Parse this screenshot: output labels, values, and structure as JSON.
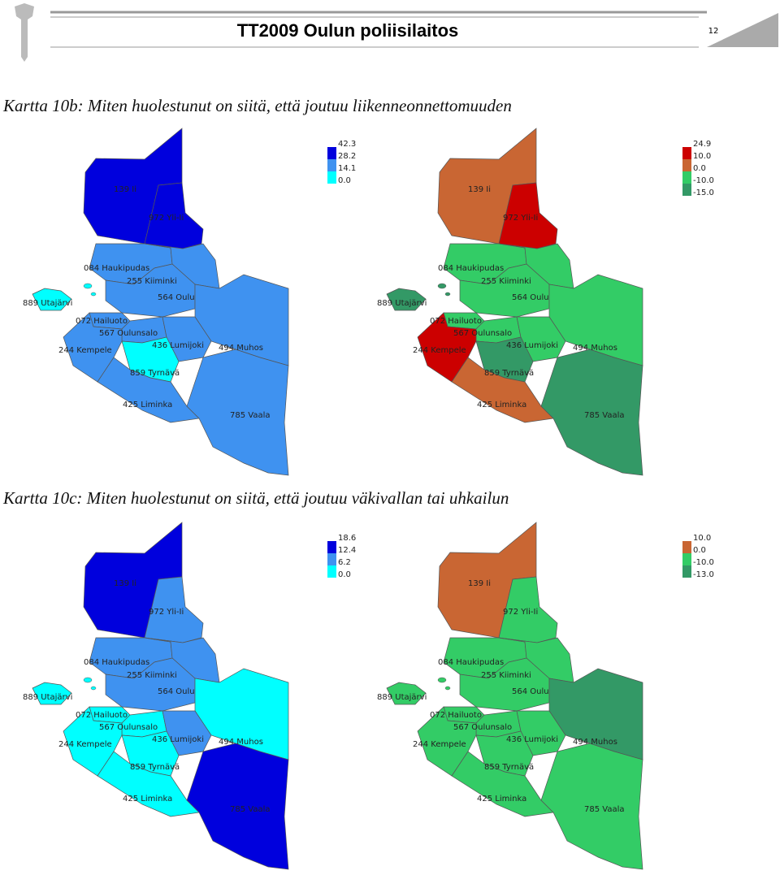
{
  "header": {
    "title": "TT2009 Oulun poliisilaitos",
    "page_number": "12"
  },
  "sections": [
    {
      "title": "Kartta 10b: Miten huolestunut on siitä, että joutuu liikenneonnettomuuden",
      "maps": [
        {
          "legend": {
            "labels": [
              "42.3",
              "28.2",
              "14.1",
              "0.0"
            ],
            "colors": [
              "#0000dd",
              "#3f92f0",
              "#00ffff"
            ]
          },
          "regions": [
            {
              "label": "139 Ii",
              "color": "#0000dd"
            },
            {
              "label": "972 Yli-Ii",
              "color": "#0000dd"
            },
            {
              "label": "084 Haukipudas",
              "color": "#3f92f0"
            },
            {
              "label": "255 Kiiminki",
              "color": "#3f92f0"
            },
            {
              "label": "564 Oulu",
              "color": "#3f92f0"
            },
            {
              "label": "889 Utajärvi",
              "color": "#3f92f0"
            },
            {
              "label": "072 Hailuoto",
              "color": "#00ffff"
            },
            {
              "label": "567 Oulunsalo",
              "color": "#3f92f0"
            },
            {
              "label": "244 Kempele",
              "color": "#3f92f0"
            },
            {
              "label": "436 Lumijoki",
              "color": "#3f92f0"
            },
            {
              "label": "494 Muhos",
              "color": "#3f92f0"
            },
            {
              "label": "859 Tyrnävä",
              "color": "#00ffff"
            },
            {
              "label": "425 Liminka",
              "color": "#3f92f0"
            },
            {
              "label": "785 Vaala",
              "color": "#3f92f0"
            }
          ]
        },
        {
          "legend": {
            "labels": [
              "24.9",
              "10.0",
              "0.0",
              "-10.0",
              "-15.0"
            ],
            "colors": [
              "#cc0000",
              "#c96633",
              "#33cc66",
              "#339966"
            ]
          },
          "regions": [
            {
              "label": "139 Ii",
              "color": "#c96633"
            },
            {
              "label": "972 Yli-Ii",
              "color": "#cc0000"
            },
            {
              "label": "084 Haukipudas",
              "color": "#33cc66"
            },
            {
              "label": "255 Kiiminki",
              "color": "#33cc66"
            },
            {
              "label": "564 Oulu",
              "color": "#33cc66"
            },
            {
              "label": "889 Utajärvi",
              "color": "#33cc66"
            },
            {
              "label": "072 Hailuoto",
              "color": "#339966"
            },
            {
              "label": "567 Oulunsalo",
              "color": "#33cc66"
            },
            {
              "label": "244 Kempele",
              "color": "#33cc66"
            },
            {
              "label": "436 Lumijoki",
              "color": "#cc0000"
            },
            {
              "label": "494 Muhos",
              "color": "#33cc66"
            },
            {
              "label": "859 Tyrnävä",
              "color": "#339966"
            },
            {
              "label": "425 Liminka",
              "color": "#c96633"
            },
            {
              "label": "785 Vaala",
              "color": "#339966"
            }
          ]
        }
      ]
    },
    {
      "title": "Kartta 10c: Miten huolestunut on siitä, että joutuu väkivallan tai uhkailun",
      "maps": [
        {
          "legend": {
            "labels": [
              "18.6",
              "12.4",
              "6.2",
              "0.0"
            ],
            "colors": [
              "#0000dd",
              "#3f92f0",
              "#00ffff"
            ]
          },
          "regions": [
            {
              "label": "139 Ii",
              "color": "#0000dd"
            },
            {
              "label": "972 Yli-Ii",
              "color": "#3f92f0"
            },
            {
              "label": "084 Haukipudas",
              "color": "#3f92f0"
            },
            {
              "label": "255 Kiiminki",
              "color": "#3f92f0"
            },
            {
              "label": "564 Oulu",
              "color": "#3f92f0"
            },
            {
              "label": "889 Utajärvi",
              "color": "#00ffff"
            },
            {
              "label": "072 Hailuoto",
              "color": "#00ffff"
            },
            {
              "label": "567 Oulunsalo",
              "color": "#00ffff"
            },
            {
              "label": "244 Kempele",
              "color": "#00ffff"
            },
            {
              "label": "436 Lumijoki",
              "color": "#00ffff"
            },
            {
              "label": "494 Muhos",
              "color": "#3f92f0"
            },
            {
              "label": "859 Tyrnävä",
              "color": "#00ffff"
            },
            {
              "label": "425 Liminka",
              "color": "#00ffff"
            },
            {
              "label": "785 Vaala",
              "color": "#0000dd"
            }
          ]
        },
        {
          "legend": {
            "labels": [
              "10.0",
              "0.0",
              "-10.0",
              "-13.0"
            ],
            "colors": [
              "#c96633",
              "#33cc66",
              "#339966"
            ]
          },
          "regions": [
            {
              "label": "139 Ii",
              "color": "#c96633"
            },
            {
              "label": "972 Yli-Ii",
              "color": "#33cc66"
            },
            {
              "label": "084 Haukipudas",
              "color": "#33cc66"
            },
            {
              "label": "255 Kiiminki",
              "color": "#33cc66"
            },
            {
              "label": "564 Oulu",
              "color": "#33cc66"
            },
            {
              "label": "889 Utajärvi",
              "color": "#339966"
            },
            {
              "label": "072 Hailuoto",
              "color": "#33cc66"
            },
            {
              "label": "567 Oulunsalo",
              "color": "#33cc66"
            },
            {
              "label": "244 Kempele",
              "color": "#33cc66"
            },
            {
              "label": "436 Lumijoki",
              "color": "#33cc66"
            },
            {
              "label": "494 Muhos",
              "color": "#33cc66"
            },
            {
              "label": "859 Tyrnävä",
              "color": "#33cc66"
            },
            {
              "label": "425 Liminka",
              "color": "#33cc66"
            },
            {
              "label": "785 Vaala",
              "color": "#33cc66"
            }
          ]
        }
      ]
    }
  ]
}
